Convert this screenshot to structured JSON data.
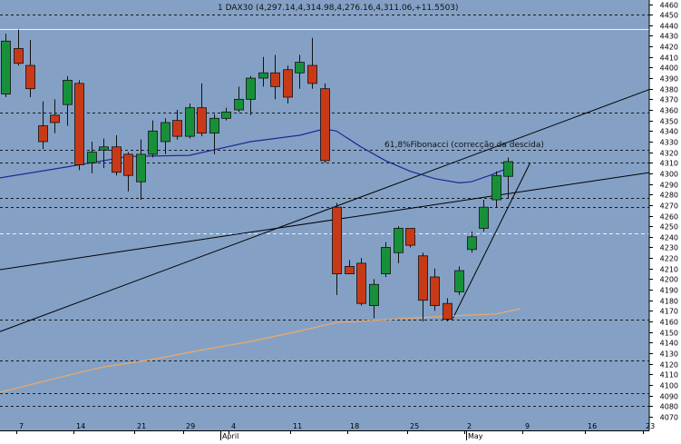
{
  "chart_data": {
    "type": "candlestick",
    "title": "1 DAX30 (4,297.14,4,314.98,4,276.16,4,311.06,+11.5503)",
    "annotation": "61,8%Fibonacci (correcção da descida)",
    "y_axis": {
      "min": 4070,
      "max": 4460,
      "step": 10,
      "position": "right"
    },
    "x_axis": {
      "day_labels": [
        "7",
        "14",
        "21",
        "29",
        "4",
        "11",
        "18",
        "25",
        "2",
        "9",
        "16",
        "23"
      ],
      "month_labels": [
        "April",
        "May"
      ]
    },
    "colors": {
      "background": "#84a1c5",
      "up": "#18903a",
      "down": "#c83a17",
      "neutral": "#d2dcea",
      "ma_short": "#1c2a96",
      "ma_long": "#f0a868",
      "trend": "#000000",
      "resistance": "#f2f2f2"
    },
    "candles": [
      {
        "o": 4375,
        "h": 4432,
        "l": 4372,
        "c": 4425
      },
      {
        "o": 4418,
        "h": 4436,
        "l": 4402,
        "c": 4404
      },
      {
        "o": 4402,
        "h": 4426,
        "l": 4372,
        "c": 4380
      },
      {
        "o": 4345,
        "h": 4368,
        "l": 4323,
        "c": 4330
      },
      {
        "o": 4355,
        "h": 4370,
        "l": 4338,
        "c": 4348
      },
      {
        "o": 4365,
        "h": 4392,
        "l": 4345,
        "c": 4388
      },
      {
        "o": 4385,
        "h": 4388,
        "l": 4303,
        "c": 4308
      },
      {
        "o": 4310,
        "h": 4330,
        "l": 4300,
        "c": 4320
      },
      {
        "o": 4322,
        "h": 4333,
        "l": 4305,
        "c": 4325
      },
      {
        "o": 4325,
        "h": 4336,
        "l": 4298,
        "c": 4301
      },
      {
        "o": 4318,
        "h": 4320,
        "l": 4283,
        "c": 4298
      },
      {
        "o": 4292,
        "h": 4332,
        "l": 4275,
        "c": 4318
      },
      {
        "o": 4318,
        "h": 4350,
        "l": 4315,
        "c": 4340
      },
      {
        "o": 4330,
        "h": 4352,
        "l": 4318,
        "c": 4348
      },
      {
        "o": 4350,
        "h": 4360,
        "l": 4332,
        "c": 4335
      },
      {
        "o": 4335,
        "h": 4366,
        "l": 4333,
        "c": 4362
      },
      {
        "o": 4362,
        "h": 4385,
        "l": 4335,
        "c": 4338
      },
      {
        "o": 4338,
        "h": 4356,
        "l": 4318,
        "c": 4352
      },
      {
        "o": 4352,
        "h": 4362,
        "l": 4350,
        "c": 4358
      },
      {
        "o": 4360,
        "h": 4382,
        "l": 4358,
        "c": 4370
      },
      {
        "o": 4370,
        "h": 4392,
        "l": 4355,
        "c": 4390
      },
      {
        "o": 4390,
        "h": 4410,
        "l": 4382,
        "c": 4395
      },
      {
        "o": 4395,
        "h": 4412,
        "l": 4370,
        "c": 4382
      },
      {
        "o": 4398,
        "h": 4402,
        "l": 4366,
        "c": 4372
      },
      {
        "o": 4395,
        "h": 4412,
        "l": 4380,
        "c": 4405
      },
      {
        "o": 4402,
        "h": 4428,
        "l": 4380,
        "c": 4385
      },
      {
        "o": 4380,
        "h": 4385,
        "l": 4310,
        "c": 4312
      },
      {
        "o": 4268,
        "h": 4272,
        "l": 4185,
        "c": 4205
      },
      {
        "o": 4212,
        "h": 4218,
        "l": 4205,
        "c": 4205
      },
      {
        "o": 4215,
        "h": 4220,
        "l": 4175,
        "c": 4177
      },
      {
        "o": 4175,
        "h": 4200,
        "l": 4163,
        "c": 4195
      },
      {
        "o": 4205,
        "h": 4235,
        "l": 4202,
        "c": 4230
      },
      {
        "o": 4225,
        "h": 4250,
        "l": 4215,
        "c": 4248
      },
      {
        "o": 4248,
        "h": 4248,
        "l": 4230,
        "c": 4232
      },
      {
        "o": 4222,
        "h": 4225,
        "l": 4160,
        "c": 4180
      },
      {
        "o": 4202,
        "h": 4210,
        "l": 4170,
        "c": 4175
      },
      {
        "o": 4177,
        "h": 4182,
        "l": 4160,
        "c": 4162
      },
      {
        "o": 4188,
        "h": 4212,
        "l": 4185,
        "c": 4208
      },
      {
        "o": 4228,
        "h": 4245,
        "l": 4225,
        "c": 4240
      },
      {
        "o": 4248,
        "h": 4275,
        "l": 4245,
        "c": 4268
      },
      {
        "o": 4275,
        "h": 4302,
        "l": 4268,
        "c": 4298
      },
      {
        "o": 4297.14,
        "h": 4314.98,
        "l": 4276.16,
        "c": 4311.06
      }
    ],
    "horizontal_levels": {
      "dashed": [
        4450,
        4357,
        4322,
        4310,
        4277,
        4268,
        4162,
        4123,
        4092,
        4080
      ],
      "dashed_light": [
        4243
      ],
      "resistance": [
        4436
      ]
    },
    "moving_averages": {
      "short": [
        [
          -0.8,
          4295
        ],
        [
          5,
          4306
        ],
        [
          10,
          4316
        ],
        [
          15,
          4317
        ],
        [
          20,
          4330
        ],
        [
          24,
          4336
        ],
        [
          26,
          4342
        ],
        [
          27,
          4340
        ],
        [
          29,
          4325
        ],
        [
          31,
          4312
        ],
        [
          33,
          4302
        ],
        [
          35,
          4295
        ],
        [
          37,
          4291
        ],
        [
          38,
          4292
        ],
        [
          39.5,
          4298
        ],
        [
          41,
          4305
        ]
      ],
      "long": [
        [
          -0.8,
          4092
        ],
        [
          4,
          4106
        ],
        [
          8,
          4117
        ],
        [
          12,
          4124
        ],
        [
          16,
          4133
        ],
        [
          20,
          4141
        ],
        [
          24,
          4151
        ],
        [
          27,
          4159
        ],
        [
          30,
          4161
        ],
        [
          33,
          4163
        ],
        [
          36,
          4165
        ],
        [
          40,
          4167
        ],
        [
          42,
          4172
        ]
      ]
    },
    "trendlines": [
      [
        [
          -1,
          4148
        ],
        [
          55,
          4390
        ]
      ],
      [
        [
          -1,
          4208
        ],
        [
          55,
          4305
        ]
      ],
      [
        [
          36.5,
          4163
        ],
        [
          42.8,
          4310
        ]
      ]
    ]
  }
}
